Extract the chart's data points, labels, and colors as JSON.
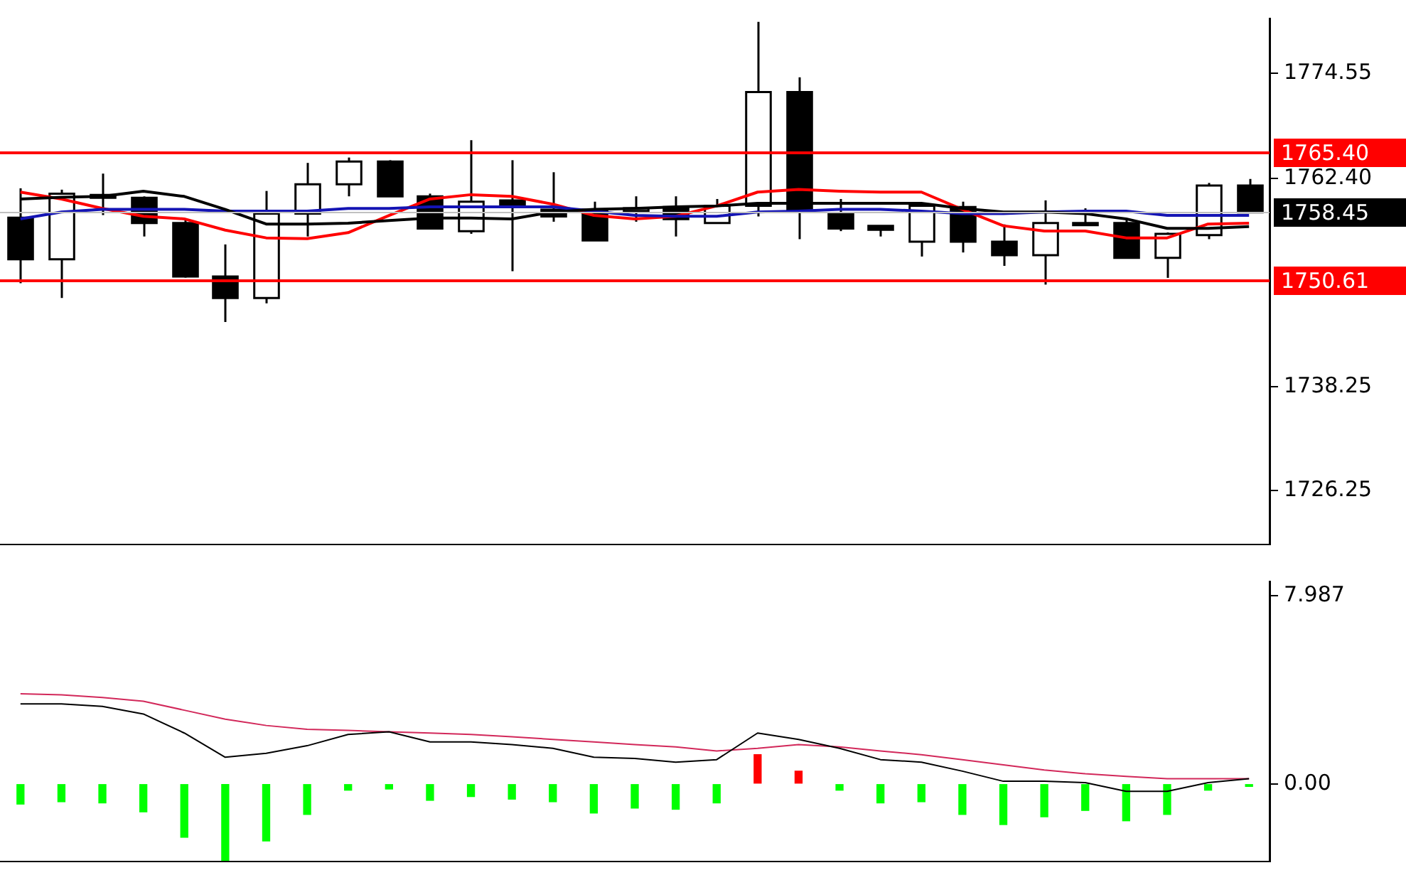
{
  "chart_data": [
    {
      "type": "candlestick",
      "categories": [
        null,
        null,
        null,
        null,
        null,
        null,
        null,
        null,
        null,
        null,
        null,
        null,
        null,
        null,
        null,
        null,
        null,
        null,
        null,
        null,
        null,
        null,
        null,
        null,
        null,
        null,
        null,
        null,
        null,
        null,
        null
      ],
      "ohlc": [
        [
          1757.83,
          1761.24,
          1750.25,
          1753.03
        ],
        [
          1753.03,
          1761.08,
          1748.54,
          1760.62
        ],
        [
          1760.46,
          1762.94,
          1758.14,
          1760.15
        ],
        [
          1760.15,
          1760.3,
          1755.66,
          1757.21
        ],
        [
          1757.21,
          1757.68,
          1750.9,
          1751.02
        ],
        [
          1751.02,
          1754.74,
          1745.76,
          1748.54
        ],
        [
          1748.54,
          1760.93,
          1747.92,
          1758.3
        ],
        [
          1758.3,
          1764.18,
          1755.66,
          1761.7
        ],
        [
          1761.7,
          1764.8,
          1760.31,
          1764.33
        ],
        [
          1764.33,
          1764.49,
          1760.31,
          1760.31
        ],
        [
          1760.31,
          1760.62,
          1756.59,
          1756.59
        ],
        [
          1756.28,
          1766.81,
          1755.97,
          1759.69
        ],
        [
          1759.84,
          1764.49,
          1751.64,
          1759.22
        ],
        [
          1758.76,
          1763.1,
          1757.37,
          1757.99
        ],
        [
          1758.76,
          1759.69,
          1755.2,
          1755.2
        ],
        [
          1758.61,
          1760.31,
          1757.37,
          1758.92
        ],
        [
          1759.07,
          1760.31,
          1755.66,
          1757.68
        ],
        [
          1757.21,
          1760.0,
          1757.21,
          1759.22
        ],
        [
          1759.22,
          1780.5,
          1757.99,
          1772.38
        ],
        [
          1772.38,
          1774.09,
          1755.35,
          1758.76
        ],
        [
          1758.3,
          1760.0,
          1756.28,
          1756.59
        ],
        [
          1756.9,
          1756.9,
          1755.66,
          1756.44
        ],
        [
          1755.05,
          1759.38,
          1753.34,
          1759.22
        ],
        [
          1759.07,
          1759.69,
          1753.81,
          1755.05
        ],
        [
          1755.05,
          1757.06,
          1752.26,
          1753.5
        ],
        [
          1753.5,
          1759.84,
          1750.09,
          1757.21
        ],
        [
          1757.21,
          1758.92,
          1756.9,
          1757.06
        ],
        [
          1757.21,
          1757.68,
          1753.19,
          1753.19
        ],
        [
          1753.19,
          1756.13,
          1750.87,
          1755.97
        ],
        [
          1755.82,
          1761.86,
          1755.35,
          1761.55
        ],
        [
          1761.55,
          1762.32,
          1758.45,
          1758.45
        ]
      ],
      "series": [
        {
          "type": "line",
          "color": "#000000",
          "values": [
            1760.0,
            1760.2,
            1760.3,
            1760.9,
            1760.3,
            1758.8,
            1757.1,
            1757.1,
            1757.2,
            1757.5,
            1757.8,
            1757.8,
            1757.7,
            1758.5,
            1758.8,
            1758.9,
            1759.1,
            1759.2,
            1759.5,
            1759.5,
            1759.5,
            1759.5,
            1759.5,
            1758.9,
            1758.5,
            1758.5,
            1758.3,
            1757.7,
            1756.6,
            1756.6,
            1756.8
          ]
        },
        {
          "type": "line",
          "color": "#1414b4",
          "values": [
            1757.7,
            1758.5,
            1758.8,
            1758.8,
            1758.8,
            1758.6,
            1758.6,
            1758.6,
            1758.9,
            1758.9,
            1759.1,
            1759.1,
            1759.1,
            1759.1,
            1758.6,
            1758.1,
            1758.0,
            1758.0,
            1758.5,
            1758.6,
            1758.8,
            1758.8,
            1758.6,
            1758.3,
            1758.3,
            1758.5,
            1758.6,
            1758.6,
            1758.1,
            1758.1,
            1758.1
          ]
        },
        {
          "type": "line",
          "color": "#ff0000",
          "values": [
            1760.8,
            1760.0,
            1758.9,
            1758.0,
            1757.7,
            1756.4,
            1755.5,
            1755.4,
            1756.1,
            1758.1,
            1760.0,
            1760.5,
            1760.3,
            1759.4,
            1758.1,
            1757.7,
            1758.0,
            1759.2,
            1760.8,
            1761.1,
            1760.9,
            1760.8,
            1760.8,
            1758.8,
            1756.9,
            1756.3,
            1756.3,
            1755.5,
            1755.5,
            1757.1,
            1757.2
          ]
        }
      ],
      "ylim": [
        1720.0,
        1780.9
      ],
      "yticks": [
        1726.25,
        1738.25,
        {
          "value": 1762.4,
          "label": "1762.40"
        },
        1774.55
      ],
      "ref_lines": [
        {
          "axis": "y",
          "value": 1765.4,
          "label": "1765.40",
          "color": "#ff0000"
        },
        {
          "axis": "y",
          "value": 1750.61,
          "label": "1750.61",
          "color": "#ff0000"
        },
        {
          "axis": "y",
          "value": 1758.45,
          "label": "1758.45",
          "color": "#c0c0c0"
        }
      ],
      "tick_labels": "y",
      "grid": false,
      "legend": false
    },
    {
      "type": "bar",
      "categories": [
        null,
        null,
        null,
        null,
        null,
        null,
        null,
        null,
        null,
        null,
        null,
        null,
        null,
        null,
        null,
        null,
        null,
        null,
        null,
        null,
        null,
        null,
        null,
        null,
        null,
        null,
        null,
        null,
        null,
        null,
        null
      ],
      "series": [
        {
          "type": "bar",
          "colors": [
            "#00ff00",
            "#00ff00",
            "#00ff00",
            "#00ff00",
            "#00ff00",
            "#00ff00",
            "#00ff00",
            "#00ff00",
            "#00ff00",
            "#00ff00",
            "#00ff00",
            "#00ff00",
            "#00ff00",
            "#00ff00",
            "#00ff00",
            "#00ff00",
            "#00ff00",
            "#00ff00",
            "#ff0000",
            "#ff0000",
            "#00ff00",
            "#00ff00",
            "#00ff00",
            "#00ff00",
            "#00ff00",
            "#00ff00",
            "#00ff00",
            "#00ff00",
            "#00ff00",
            "#00ff00",
            "#00ff00"
          ],
          "values": [
            -0.86,
            -0.76,
            -0.81,
            -1.19,
            -2.27,
            -3.25,
            -2.43,
            -1.3,
            -0.27,
            -0.22,
            -0.7,
            -0.54,
            -0.65,
            -0.76,
            -1.24,
            -1.03,
            -1.08,
            -0.81,
            1.24,
            0.54,
            -0.27,
            -0.81,
            -0.76,
            -1.3,
            -1.73,
            -1.4,
            -1.13,
            -1.57,
            -1.3,
            -0.27,
            -0.11
          ]
        },
        {
          "type": "line",
          "color": "#000000",
          "values": [
            3.4,
            3.4,
            3.29,
            2.97,
            2.16,
            1.13,
            1.3,
            1.62,
            2.1,
            2.21,
            1.78,
            1.78,
            1.67,
            1.51,
            1.13,
            1.08,
            0.92,
            1.03,
            2.16,
            1.89,
            1.51,
            1.03,
            0.92,
            0.54,
            0.11,
            0.11,
            0.05,
            -0.32,
            -0.32,
            0.05,
            0.22
          ]
        },
        {
          "type": "line",
          "color": "#d2285a",
          "values": [
            3.83,
            3.78,
            3.67,
            3.51,
            3.13,
            2.75,
            2.48,
            2.32,
            2.27,
            2.21,
            2.16,
            2.1,
            2.0,
            1.89,
            1.78,
            1.67,
            1.57,
            1.4,
            1.51,
            1.67,
            1.57,
            1.4,
            1.24,
            1.03,
            0.81,
            0.59,
            0.43,
            0.32,
            0.22,
            0.22,
            0.22
          ]
        }
      ],
      "ylim": [
        -3.3,
        8.6
      ],
      "yticks": [
        7.987,
        {
          "value": 0,
          "label": "0.00"
        }
      ],
      "tick_labels": "y",
      "grid": false,
      "legend": false
    }
  ]
}
